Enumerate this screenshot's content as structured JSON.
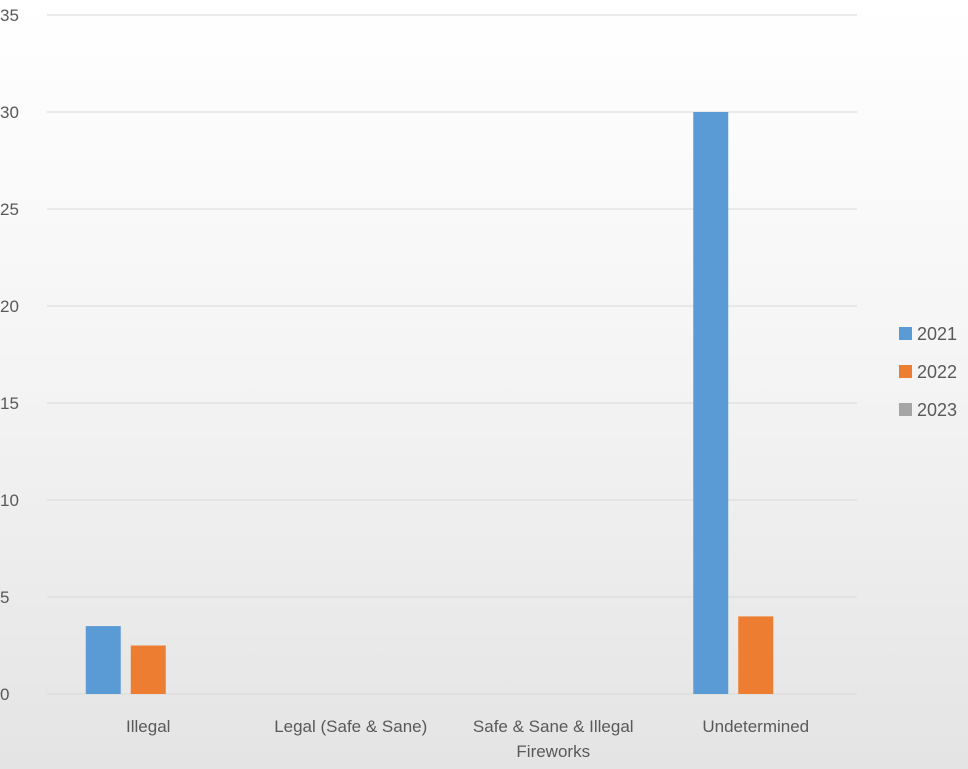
{
  "chart_data": {
    "type": "bar",
    "title": "",
    "xlabel": "",
    "ylabel": "",
    "ylim": [
      0,
      35
    ],
    "yticks": [
      0,
      5,
      10,
      15,
      20,
      25,
      30,
      35
    ],
    "grid": true,
    "legend_position": "right",
    "categories": [
      [
        "Illegal"
      ],
      [
        "Legal (Safe & Sane)"
      ],
      [
        "Safe & Sane & Illegal",
        "Fireworks"
      ],
      [
        "Undetermined"
      ]
    ],
    "series": [
      {
        "name": "2021",
        "color": "#5b9bd5",
        "values": [
          3.5,
          0,
          0,
          30
        ]
      },
      {
        "name": "2022",
        "color": "#ed7d31",
        "values": [
          2.5,
          0,
          0,
          4
        ]
      },
      {
        "name": "2023",
        "color": "#a5a5a5",
        "values": [
          0,
          0,
          0,
          0
        ]
      }
    ]
  }
}
